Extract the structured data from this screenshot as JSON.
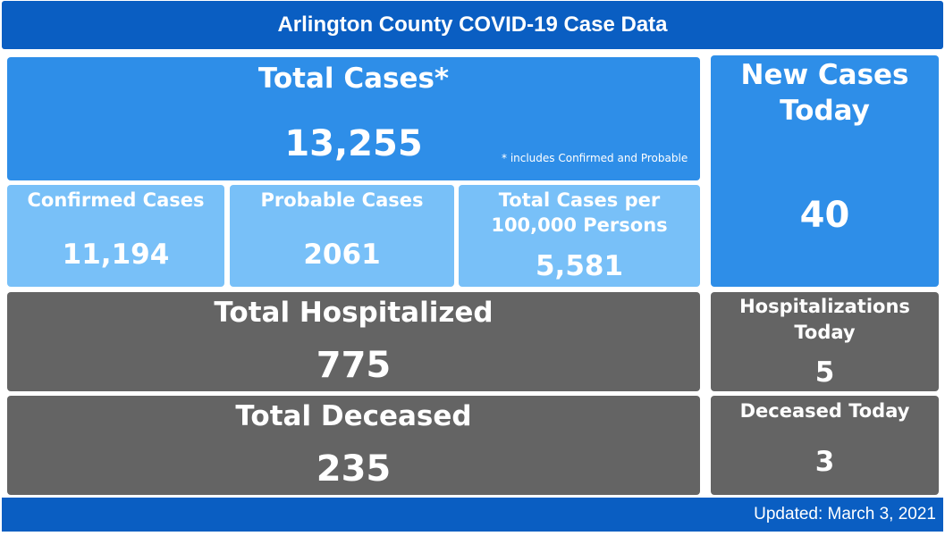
{
  "header": {
    "title": "Arlington County COVID-19 Case Data"
  },
  "total_cases": {
    "label": "Total Cases*",
    "value": "13,255",
    "footnote": "* includes Confirmed and Probable"
  },
  "confirmed": {
    "label": "Confirmed Cases",
    "value": "11,194"
  },
  "probable": {
    "label": "Probable Cases",
    "value": "2061"
  },
  "per_capita": {
    "label_line1": "Total Cases per",
    "label_line2": "100,000 Persons",
    "value": "5,581"
  },
  "new_cases": {
    "label_line1": "New Cases",
    "label_line2": "Today",
    "value": "40"
  },
  "hospitalized": {
    "label": "Total Hospitalized",
    "value": "775"
  },
  "hosp_today": {
    "label_line1": "Hospitalizations",
    "label_line2": "Today",
    "value": "5"
  },
  "deceased": {
    "label": "Total Deceased",
    "value": "235"
  },
  "deceased_today": {
    "label": "Deceased Today",
    "value": "3"
  },
  "footer": {
    "updated": "Updated: March 3, 2021"
  },
  "colors": {
    "header_blue": "#0a5ec2",
    "tile_blue": "#2e8ee8",
    "tile_light_blue": "#78c0f8",
    "tile_gray": "#646464"
  }
}
